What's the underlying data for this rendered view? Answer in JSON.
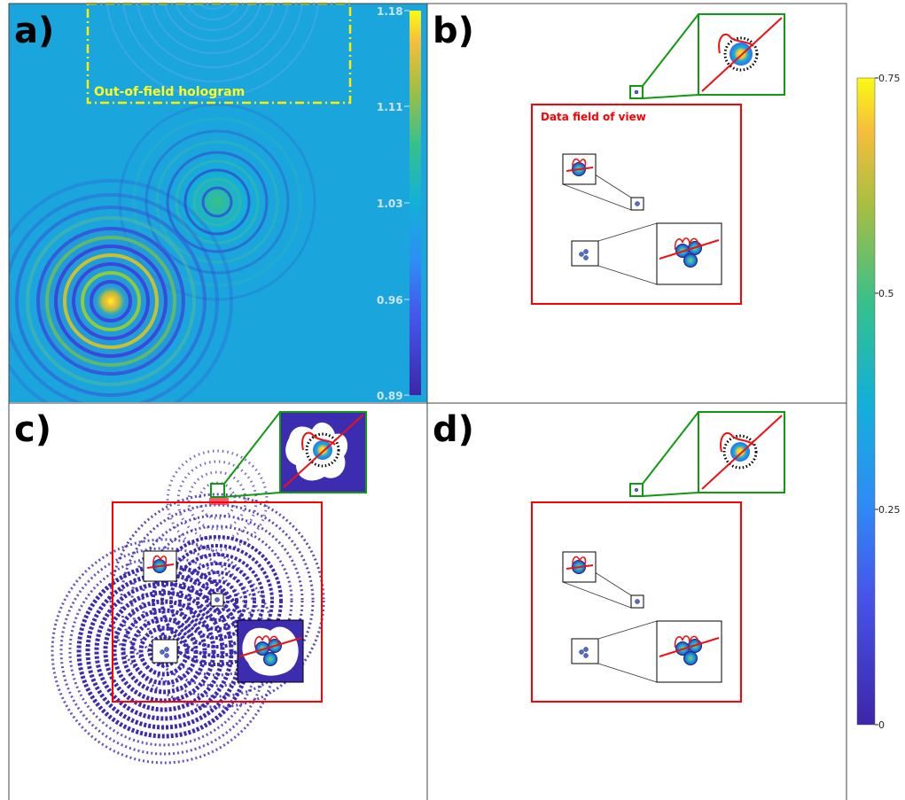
{
  "panels": {
    "a": {
      "letter": "a)",
      "annotation": "Out-of-field hologram",
      "colorbar_ticks": [
        "1.18",
        "1.11",
        "1.03",
        "0.96",
        "0.89"
      ]
    },
    "b": {
      "letter": "b)",
      "fov_label": "Data field of view"
    },
    "c": {
      "letter": "c)"
    },
    "d": {
      "letter": "d)"
    }
  },
  "colorbar": {
    "ticks": [
      "0.75",
      "0.5",
      "0.25",
      "0"
    ]
  },
  "colors": {
    "hologram_bg": "#1aa6dd",
    "field_of_view": "#ff0000",
    "out_of_field": "#ffee00",
    "zoom_box": "#119911",
    "ring_mask": "#3b2cb0"
  }
}
